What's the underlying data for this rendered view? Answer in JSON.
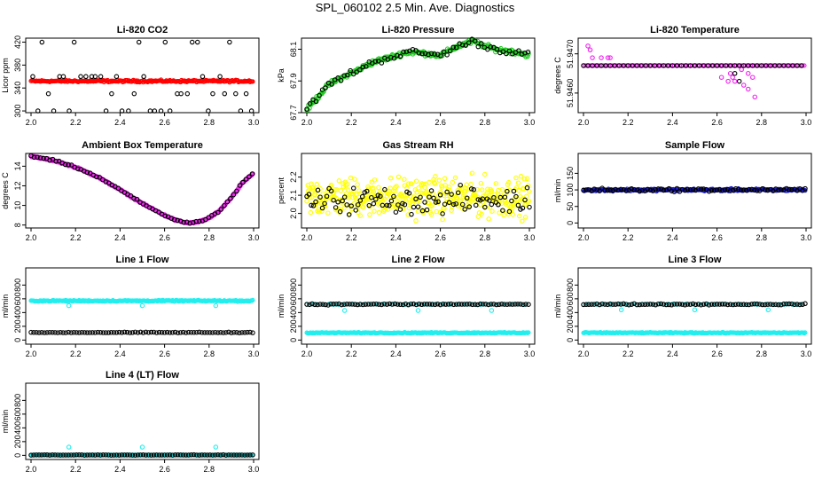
{
  "title": "SPL_060102  2.5 Min. Ave. Diagnostics",
  "colors": {
    "black": "#000000",
    "red": "#ff0000",
    "green": "#22cc22",
    "magenta": "#ee22ee",
    "yellow": "#ffff00",
    "blue": "#1818cc",
    "cyan": "#22eeee"
  },
  "chart_data": [
    {
      "type": "scatter",
      "title": "Li-820 CO2",
      "ylabel": "Licor ppm",
      "xlim": [
        2.0,
        3.0
      ],
      "xticks": [
        "2.0",
        "2.2",
        "2.4",
        "2.6",
        "2.8",
        "3.0"
      ],
      "ylim": [
        297,
        427
      ],
      "yticks": [
        {
          "v": 300,
          "label": "300"
        },
        {
          "v": 340,
          "label": "340"
        },
        {
          "v": 380,
          "label": "380"
        },
        {
          "v": 420,
          "label": "420"
        }
      ],
      "series": [
        {
          "name": "co2-avg",
          "color": "red",
          "kind": "band",
          "level": 352,
          "noise": 1.5
        },
        {
          "name": "co2-samples",
          "color": "black",
          "kind": "discrete",
          "levels": [
            300,
            330,
            360,
            420
          ]
        }
      ]
    },
    {
      "type": "scatter",
      "title": "Li-820 Pressure",
      "ylabel": "kPa",
      "xlim": [
        2.0,
        3.0
      ],
      "xticks": [
        "2.0",
        "2.2",
        "2.4",
        "2.6",
        "2.8",
        "3.0"
      ],
      "ylim": [
        67.7,
        68.17
      ],
      "yticks": [
        {
          "v": 67.7,
          "label": "67.7"
        },
        {
          "v": 67.9,
          "label": "67.9"
        },
        {
          "v": 68.1,
          "label": "68.1"
        }
      ],
      "curve": [
        [
          2.0,
          67.72
        ],
        [
          2.05,
          67.8
        ],
        [
          2.1,
          67.88
        ],
        [
          2.2,
          67.95
        ],
        [
          2.3,
          68.02
        ],
        [
          2.4,
          68.06
        ],
        [
          2.45,
          68.08
        ],
        [
          2.5,
          68.08
        ],
        [
          2.55,
          68.07
        ],
        [
          2.6,
          68.06
        ],
        [
          2.65,
          68.1
        ],
        [
          2.7,
          68.13
        ],
        [
          2.75,
          68.15
        ],
        [
          2.8,
          68.12
        ],
        [
          2.85,
          68.1
        ],
        [
          2.9,
          68.09
        ],
        [
          2.95,
          68.08
        ],
        [
          3.0,
          68.06
        ]
      ],
      "series": [
        {
          "name": "pressure-avg",
          "color": "green",
          "kind": "curve",
          "noise": 0.012
        },
        {
          "name": "pressure-samples",
          "color": "black",
          "kind": "curve-sparse",
          "noise": 0.018
        }
      ]
    },
    {
      "type": "scatter",
      "title": "Li-820 Temperature",
      "ylabel": "degrees C",
      "xlim": [
        2.0,
        3.0
      ],
      "xticks": [
        "2.0",
        "2.2",
        "2.4",
        "2.6",
        "2.8",
        "3.0"
      ],
      "ylim": [
        51.9455,
        51.9474
      ],
      "yticks": [
        {
          "v": 51.946,
          "label": "51.9460"
        },
        {
          "v": 51.947,
          "label": "51.9470"
        }
      ],
      "series": [
        {
          "name": "temperature-avg",
          "color": "magenta",
          "kind": "temp-line",
          "level": 51.9467
        },
        {
          "name": "temperature-samples",
          "color": "black",
          "kind": "temp-line-sparse",
          "level": 51.9467
        }
      ]
    },
    {
      "type": "scatter",
      "title": "Ambient Box Temperature",
      "ylabel": "degrees C",
      "xlim": [
        2.0,
        3.0
      ],
      "xticks": [
        "2.0",
        "2.2",
        "2.4",
        "2.6",
        "2.8",
        "3.0"
      ],
      "ylim": [
        7.7,
        15.3
      ],
      "yticks": [
        {
          "v": 8,
          "label": "8"
        },
        {
          "v": 10,
          "label": "10"
        },
        {
          "v": 12,
          "label": "12"
        },
        {
          "v": 14,
          "label": "14"
        }
      ],
      "curve": [
        [
          2.0,
          15.0
        ],
        [
          2.05,
          14.8
        ],
        [
          2.1,
          14.6
        ],
        [
          2.2,
          13.9
        ],
        [
          2.3,
          12.9
        ],
        [
          2.4,
          11.6
        ],
        [
          2.5,
          10.2
        ],
        [
          2.6,
          9.0
        ],
        [
          2.65,
          8.5
        ],
        [
          2.7,
          8.2
        ],
        [
          2.75,
          8.3
        ],
        [
          2.8,
          8.7
        ],
        [
          2.85,
          9.5
        ],
        [
          2.9,
          10.8
        ],
        [
          2.95,
          12.3
        ],
        [
          3.0,
          13.3
        ]
      ],
      "series": [
        {
          "name": "box-temp-avg",
          "color": "magenta",
          "kind": "curve",
          "noise": 0.06
        },
        {
          "name": "box-temp-samples",
          "color": "black",
          "kind": "curve-sparse",
          "noise": 0.08
        }
      ]
    },
    {
      "type": "scatter",
      "title": "Gas Stream RH",
      "ylabel": "percent",
      "xlim": [
        2.0,
        3.0
      ],
      "xticks": [
        "2.0",
        "2.2",
        "2.4",
        "2.6",
        "2.8",
        "3.0"
      ],
      "ylim": [
        1.92,
        2.33
      ],
      "yticks": [
        {
          "v": 2.0,
          "label": "2.0"
        },
        {
          "v": 2.1,
          "label": "2.1"
        },
        {
          "v": 2.2,
          "label": "2.2"
        }
      ],
      "series": [
        {
          "name": "rh-avg",
          "color": "yellow",
          "kind": "cloud",
          "center": 2.09,
          "spread": 0.09
        },
        {
          "name": "rh-samples",
          "color": "black",
          "kind": "cloud-sparse",
          "center": 2.07,
          "spread": 0.06
        }
      ]
    },
    {
      "type": "scatter",
      "title": "Sample Flow",
      "ylabel": "ml/min",
      "xlim": [
        2.0,
        3.0
      ],
      "xticks": [
        "2.0",
        "2.2",
        "2.4",
        "2.6",
        "2.8",
        "3.0"
      ],
      "ylim": [
        -15,
        210
      ],
      "yticks": [
        {
          "v": 0,
          "label": "0"
        },
        {
          "v": 50,
          "label": "50"
        },
        {
          "v": 100,
          "label": "100"
        },
        {
          "v": 150,
          "label": "150"
        }
      ],
      "series": [
        {
          "name": "sample-flow-avg",
          "color": "blue",
          "kind": "band",
          "level": 100,
          "noise": 3
        },
        {
          "name": "sample-flow-samples",
          "color": "black",
          "kind": "band-sparse",
          "level": 100,
          "noise": 4
        }
      ]
    },
    {
      "type": "scatter",
      "title": "Line 1 Flow",
      "ylabel": "ml/min",
      "xlim": [
        2.0,
        3.0
      ],
      "xticks": [
        "2.0",
        "2.2",
        "2.4",
        "2.6",
        "2.8",
        "3.0"
      ],
      "ylim": [
        -60,
        1050
      ],
      "yticks": [
        {
          "v": 0,
          "label": "0"
        },
        {
          "v": 200,
          "label": "200"
        },
        {
          "v": 400,
          "label": "400"
        },
        {
          "v": 600,
          "label": "600"
        },
        {
          "v": 800,
          "label": "800"
        }
      ],
      "series": [
        {
          "name": "line1-flow-avg",
          "color": "cyan",
          "kind": "band",
          "level": 570,
          "noise": 8,
          "dips": [
            2.17,
            2.5,
            2.83
          ],
          "dipLevel": 500
        },
        {
          "name": "line1-flow-samples",
          "color": "black",
          "kind": "band-sparse",
          "level": 110,
          "noise": 5
        }
      ]
    },
    {
      "type": "scatter",
      "title": "Line 2 Flow",
      "ylabel": "ml/min",
      "xlim": [
        2.0,
        3.0
      ],
      "xticks": [
        "2.0",
        "2.2",
        "2.4",
        "2.6",
        "2.8",
        "3.0"
      ],
      "ylim": [
        -60,
        1050
      ],
      "yticks": [
        {
          "v": 0,
          "label": "0"
        },
        {
          "v": 200,
          "label": "200"
        },
        {
          "v": 400,
          "label": "400"
        },
        {
          "v": 600,
          "label": "600"
        },
        {
          "v": 800,
          "label": "800"
        }
      ],
      "series": [
        {
          "name": "line2-flow-avg",
          "color": "cyan",
          "kind": "band",
          "level": 105,
          "noise": 6,
          "dips": [
            2.17,
            2.5,
            2.83
          ],
          "dipLevel": 430,
          "also": 520
        },
        {
          "name": "line2-flow-samples",
          "color": "black",
          "kind": "band-sparse",
          "level": 520,
          "noise": 8
        }
      ]
    },
    {
      "type": "scatter",
      "title": "Line 3 Flow",
      "ylabel": "ml/min",
      "xlim": [
        2.0,
        3.0
      ],
      "xticks": [
        "2.0",
        "2.2",
        "2.4",
        "2.6",
        "2.8",
        "3.0"
      ],
      "ylim": [
        -60,
        1050
      ],
      "yticks": [
        {
          "v": 0,
          "label": "0"
        },
        {
          "v": 200,
          "label": "200"
        },
        {
          "v": 400,
          "label": "400"
        },
        {
          "v": 600,
          "label": "600"
        },
        {
          "v": 800,
          "label": "800"
        }
      ],
      "series": [
        {
          "name": "line3-flow-avg",
          "color": "cyan",
          "kind": "band",
          "level": 105,
          "noise": 6,
          "dips": [
            2.17,
            2.5,
            2.83
          ],
          "dipLevel": 440,
          "also": 520
        },
        {
          "name": "line3-flow-samples",
          "color": "black",
          "kind": "band-sparse",
          "level": 520,
          "noise": 8
        }
      ]
    },
    {
      "type": "scatter",
      "title": "Line 4 (LT) Flow",
      "ylabel": "ml/min",
      "xlim": [
        2.0,
        3.0
      ],
      "xticks": [
        "2.0",
        "2.2",
        "2.4",
        "2.6",
        "2.8",
        "3.0"
      ],
      "ylim": [
        -60,
        1050
      ],
      "yticks": [
        {
          "v": 0,
          "label": "0"
        },
        {
          "v": 200,
          "label": "200"
        },
        {
          "v": 400,
          "label": "400"
        },
        {
          "v": 600,
          "label": "600"
        },
        {
          "v": 800,
          "label": "800"
        }
      ],
      "series": [
        {
          "name": "line4-flow-avg",
          "color": "cyan",
          "kind": "band",
          "level": 5,
          "noise": 3,
          "spikes": [
            2.17,
            2.5,
            2.83
          ],
          "spikeLevel": 120
        },
        {
          "name": "line4-flow-samples",
          "color": "black",
          "kind": "band-sparse",
          "level": 5,
          "noise": 3
        }
      ]
    }
  ]
}
